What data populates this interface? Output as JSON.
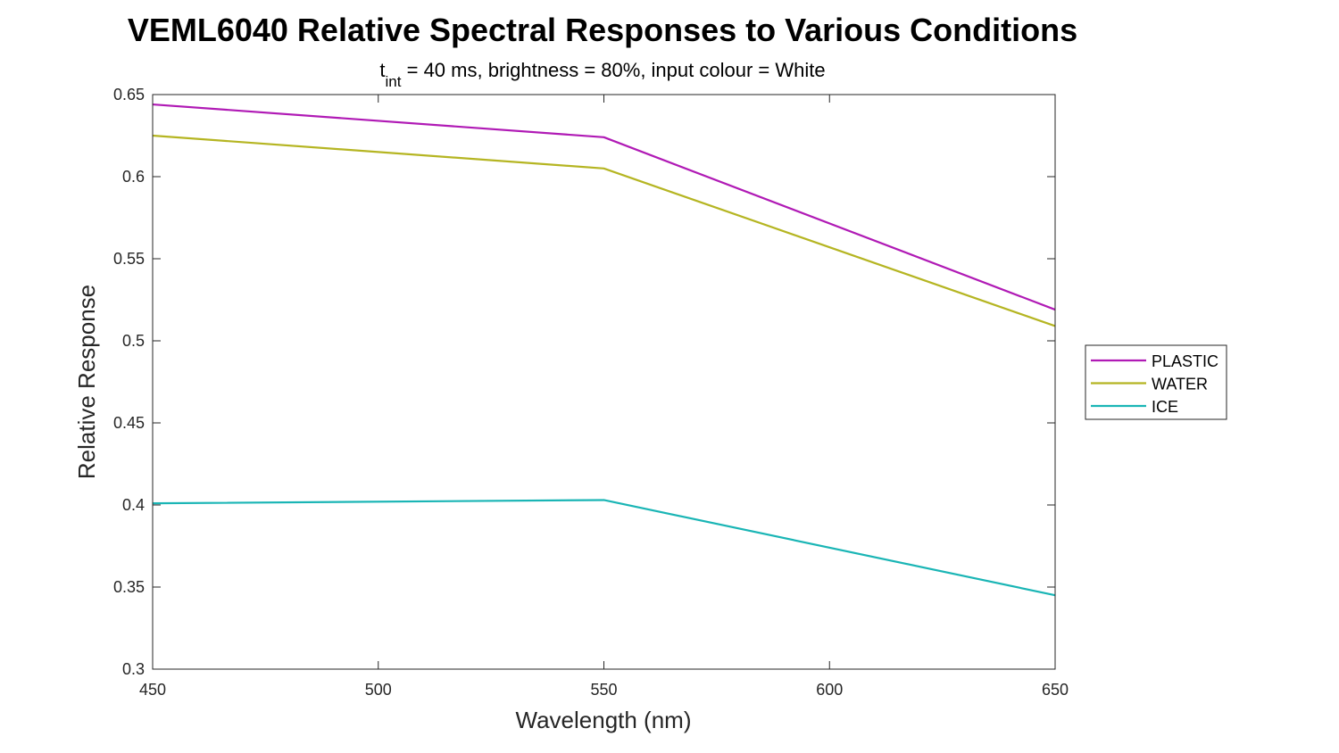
{
  "chart_data": {
    "type": "line",
    "title": "VEML6040 Relative Spectral Responses to Various Conditions",
    "subtitle": {
      "base": "t",
      "subscript": "int",
      "rest": " = 40 ms, brightness = 80%, input colour = White"
    },
    "xlabel": "Wavelength (nm)",
    "ylabel": "Relative Response",
    "x": [
      450,
      550,
      650
    ],
    "xlim": [
      450,
      650
    ],
    "ylim": [
      0.3,
      0.65
    ],
    "xticks": [
      450,
      500,
      550,
      600,
      650
    ],
    "yticks": [
      0.3,
      0.35,
      0.4,
      0.45,
      0.5,
      0.55,
      0.6,
      0.65
    ],
    "xtick_labels": [
      "450",
      "500",
      "550",
      "600",
      "650"
    ],
    "ytick_labels": [
      "0.3",
      "0.35",
      "0.4",
      "0.45",
      "0.5",
      "0.55",
      "0.6",
      "0.65"
    ],
    "grid": false,
    "legend_position": "outside-right",
    "series": [
      {
        "name": "PLASTIC",
        "color": "#B01AB5",
        "values": [
          0.644,
          0.624,
          0.519
        ]
      },
      {
        "name": "WATER",
        "color": "#B5B522",
        "values": [
          0.625,
          0.605,
          0.509
        ]
      },
      {
        "name": "ICE",
        "color": "#1AB5B5",
        "values": [
          0.401,
          0.403,
          0.345
        ]
      }
    ]
  }
}
